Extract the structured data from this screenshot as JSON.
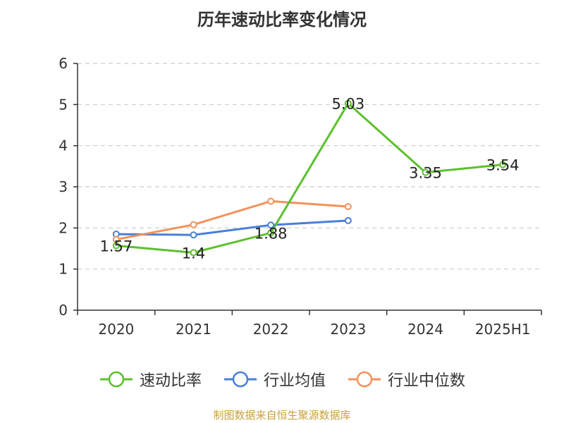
{
  "title": "历年速动比率变化情况",
  "source": "制图数据来自恒生聚源数据库",
  "chart_data": {
    "type": "line",
    "categories": [
      "2020",
      "2021",
      "2022",
      "2023",
      "2024",
      "2025H1"
    ],
    "ylim": [
      0,
      6
    ],
    "yticks": [
      0,
      1,
      2,
      3,
      4,
      5,
      6
    ],
    "grid": "horizontal-dashed",
    "legend_position": "bottom",
    "series": [
      {
        "name": "速动比率",
        "color": "#5cc02c",
        "values": [
          1.57,
          1.4,
          1.88,
          5.03,
          3.35,
          3.54
        ],
        "labels": [
          "1.57",
          "1.4",
          "1.88",
          "5.03",
          "3.35",
          "3.54"
        ]
      },
      {
        "name": "行业均值",
        "color": "#4a7fd8",
        "values": [
          1.85,
          1.83,
          2.07,
          2.18,
          null,
          null
        ]
      },
      {
        "name": "行业中位数",
        "color": "#f3925a",
        "values": [
          1.72,
          2.08,
          2.65,
          2.52,
          null,
          null
        ]
      }
    ]
  }
}
